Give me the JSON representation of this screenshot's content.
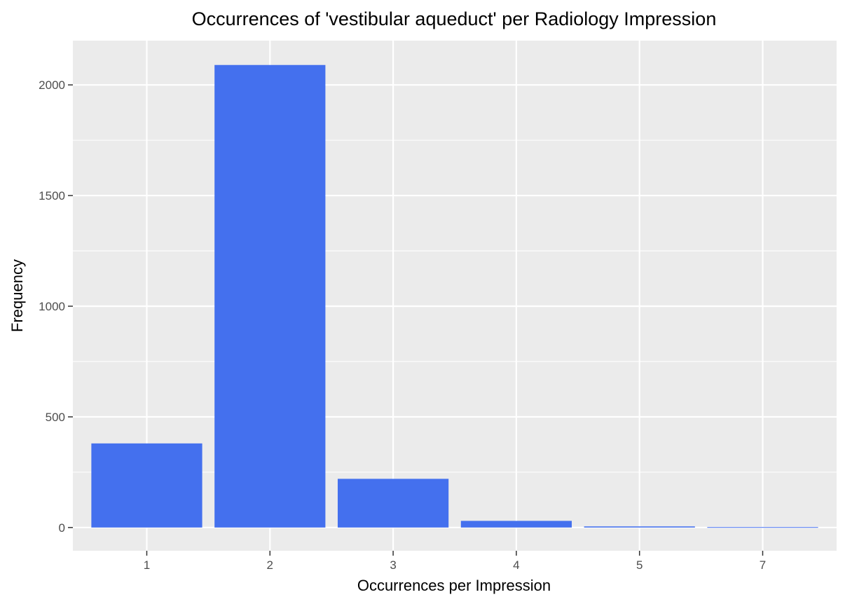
{
  "chart_data": {
    "type": "bar",
    "title": "Occurrences of 'vestibular aqueduct' per Radiology Impression",
    "xlabel": "Occurrences per Impression",
    "ylabel": "Frequency",
    "categories": [
      "1",
      "2",
      "3",
      "4",
      "5",
      "7"
    ],
    "values": [
      380,
      2090,
      220,
      30,
      5,
      2
    ],
    "ylim": [
      -105,
      2200
    ],
    "yticks": [
      0,
      500,
      1000,
      1500,
      2000
    ],
    "grid": true,
    "legend": "none",
    "colors": {
      "bar": "#4470EE",
      "panel": "#EBEBEB",
      "grid": "#FFFFFF"
    }
  }
}
